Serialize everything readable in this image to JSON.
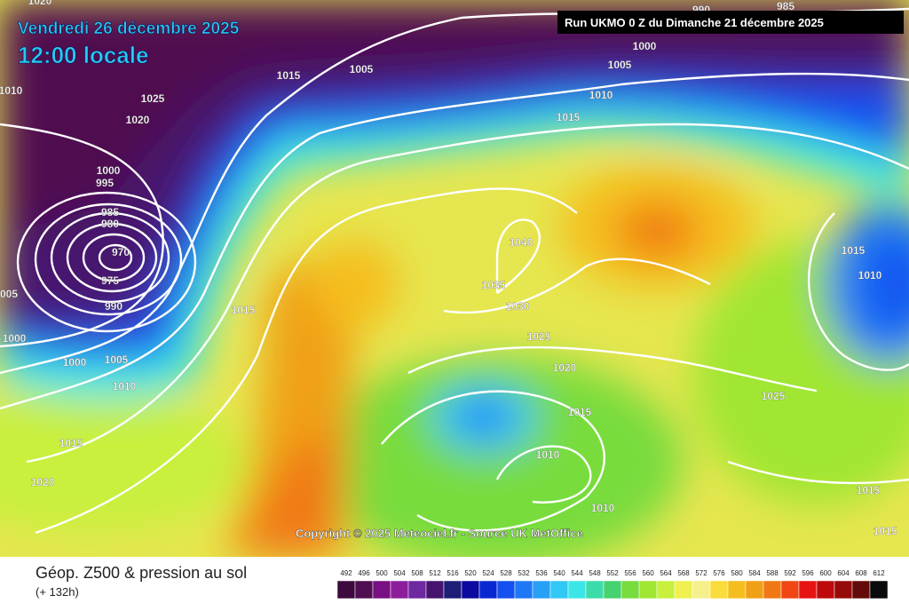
{
  "header": {
    "date": "Vendredi 26 décembre 2025",
    "time": "12:00 locale",
    "run": "Run UKMO 0 Z du Dimanche 21 décembre 2025"
  },
  "isobar_labels": [
    "1020",
    "1010",
    "1025",
    "1020",
    "1015",
    "1005",
    "1000",
    "1005",
    "1010",
    "1015",
    "1000",
    "995",
    "985",
    "980",
    "970",
    "975",
    "990",
    "005",
    "1000",
    "1000",
    "1005",
    "1010",
    "1015",
    "1015",
    "1020",
    "1040",
    "1035",
    "1030",
    "1025",
    "1020",
    "1015",
    "1010",
    "1010",
    "1025",
    "1015",
    "1010",
    "1015",
    "1015",
    "990",
    "985"
  ],
  "copyright": "Copyright © 2025 Meteociel.fr - Source UK MetOffice",
  "legend": {
    "title": "Géop. Z500 & pression au sol",
    "step": "(+ 132h)",
    "scale": [
      {
        "label": 492,
        "color": "#3c0a3c"
      },
      {
        "label": 496,
        "color": "#500f50"
      },
      {
        "label": 500,
        "color": "#780f82"
      },
      {
        "label": 504,
        "color": "#8c1e9b"
      },
      {
        "label": 508,
        "color": "#6e28a0"
      },
      {
        "label": 512,
        "color": "#46146e"
      },
      {
        "label": 516,
        "color": "#1e1e78"
      },
      {
        "label": 520,
        "color": "#0a0aa0"
      },
      {
        "label": 524,
        "color": "#0a28d2"
      },
      {
        "label": 528,
        "color": "#1450f0"
      },
      {
        "label": 532,
        "color": "#1e78f5"
      },
      {
        "label": 536,
        "color": "#28a0f5"
      },
      {
        "label": 540,
        "color": "#32c8f5"
      },
      {
        "label": 544,
        "color": "#3ce6e6"
      },
      {
        "label": 548,
        "color": "#3cdcaa"
      },
      {
        "label": 552,
        "color": "#46d26e"
      },
      {
        "label": 556,
        "color": "#78dc3c"
      },
      {
        "label": 560,
        "color": "#a0e632"
      },
      {
        "label": 564,
        "color": "#c8f03c"
      },
      {
        "label": 568,
        "color": "#f0f050"
      },
      {
        "label": 572,
        "color": "#f5f08c"
      },
      {
        "label": 576,
        "color": "#fadc3c"
      },
      {
        "label": 580,
        "color": "#f5be1e"
      },
      {
        "label": 584,
        "color": "#f0a014"
      },
      {
        "label": 588,
        "color": "#f07814"
      },
      {
        "label": 592,
        "color": "#f04614"
      },
      {
        "label": 596,
        "color": "#e61414"
      },
      {
        "label": 600,
        "color": "#be0a0a"
      },
      {
        "label": 604,
        "color": "#960a0a"
      },
      {
        "label": 608,
        "color": "#640a0a"
      },
      {
        "label": 612,
        "color": "#0a0a0a"
      }
    ]
  }
}
